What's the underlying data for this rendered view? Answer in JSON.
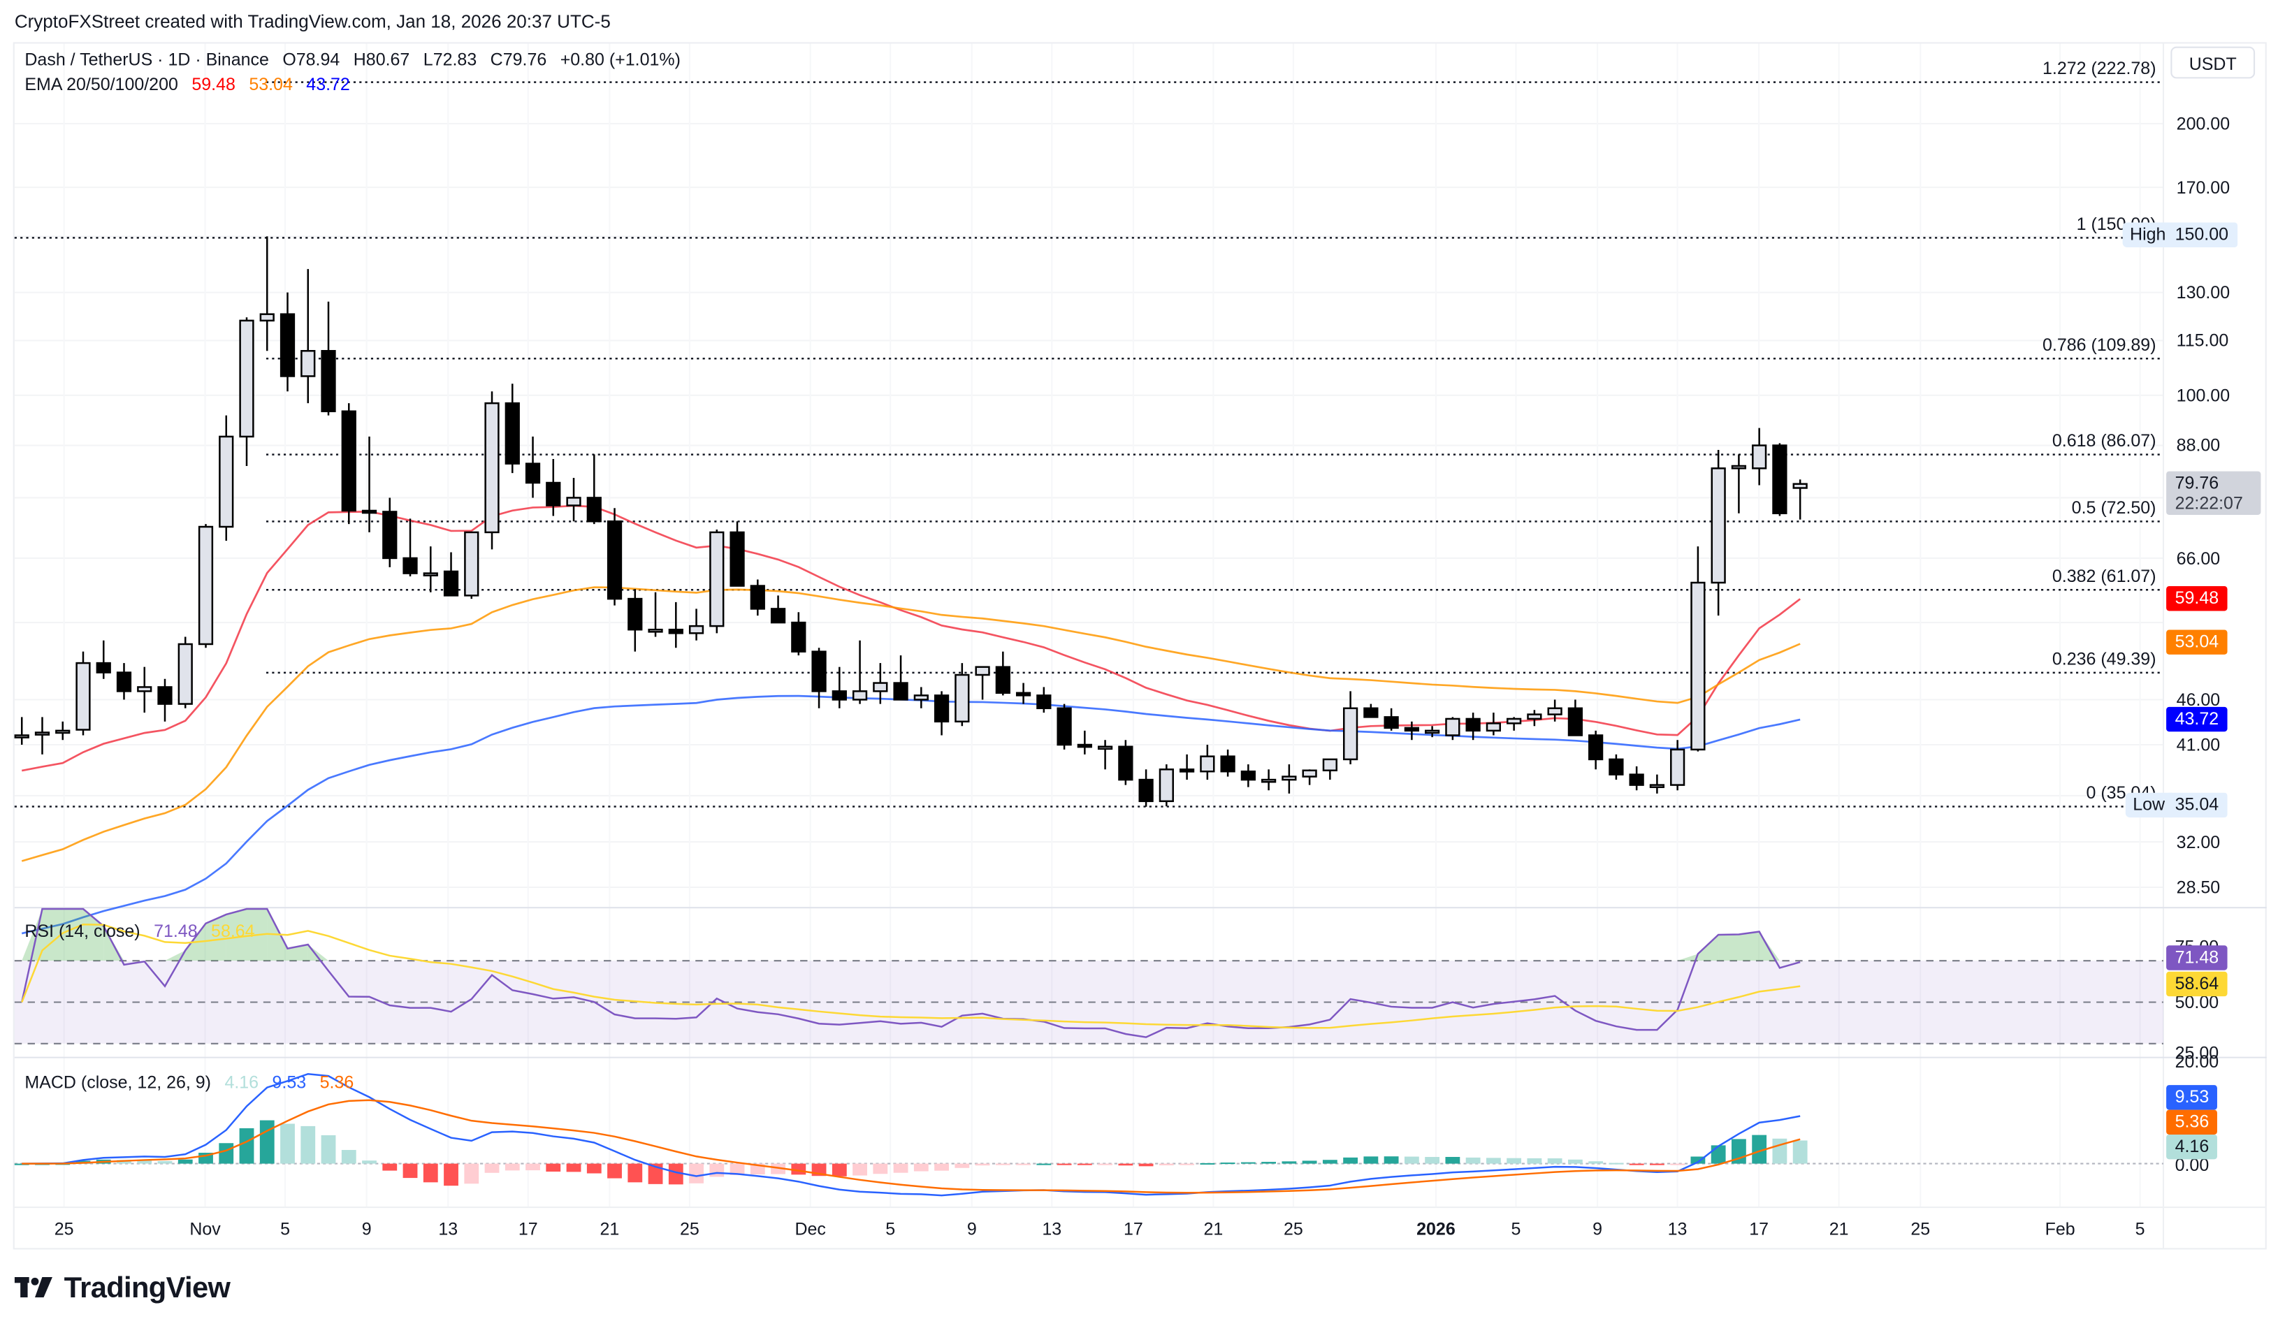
{
  "header": {
    "credit": "CryptoFXStreet created with TradingView.com, Jan 18, 2026 20:37 UTC-5",
    "symbol": "Dash / TetherUS · 1D · Binance",
    "ohlc": {
      "open": "O78.94",
      "high": "H80.67",
      "low": "L72.83",
      "close": "C79.76",
      "change": "+0.80 (+1.01%)"
    },
    "ema_label": "EMA 20/50/100/200",
    "ema_values": {
      "ema20": "59.48",
      "ema50": "53.04",
      "ema100": "43.72"
    },
    "currency_button": "USDT"
  },
  "price_axis": {
    "ticks": [
      "200.00",
      "170.00",
      "130.00",
      "115.00",
      "100.00",
      "88.00",
      "66.00",
      "46.00",
      "41.00",
      "32.00",
      "28.50"
    ],
    "last_price": "79.76",
    "countdown": "22:22:07",
    "ema20_tag": "59.48",
    "ema50_tag": "53.04",
    "ema100_tag": "43.72",
    "high_label": "High",
    "high_value": "150.00",
    "low_label": "Low",
    "low_value": "35.04"
  },
  "fib_levels": [
    {
      "label": "1.272 (222.78)",
      "price": 222.78
    },
    {
      "label": "1 (150.00)",
      "price": 150.0
    },
    {
      "label": "0.786 (109.89)",
      "price": 109.89
    },
    {
      "label": "0.618 (86.07)",
      "price": 86.07
    },
    {
      "label": "0.5 (72.50)",
      "price": 72.5
    },
    {
      "label": "0.382 (61.07)",
      "price": 61.07
    },
    {
      "label": "0.236 (49.39)",
      "price": 49.39
    },
    {
      "label": "0 (35.04)",
      "price": 35.04
    }
  ],
  "rsi": {
    "label": "RSI (14, close)",
    "value": "71.48",
    "ma_value": "58.64",
    "ticks": [
      "75.00",
      "50.00",
      "25.00"
    ],
    "value_tag": "71.48",
    "ma_tag": "58.64"
  },
  "macd": {
    "label": "MACD (close, 12, 26, 9)",
    "histogram": "4.16",
    "macd": "9.53",
    "signal": "5.36",
    "ticks": [
      "20.00",
      "0.00"
    ],
    "macd_tag": "9.53",
    "signal_tag": "5.36",
    "hist_tag": "4.16"
  },
  "time_axis": {
    "labels": [
      {
        "text": "25",
        "x": 44
      },
      {
        "text": "Nov",
        "x": 141
      },
      {
        "text": "5",
        "x": 196
      },
      {
        "text": "9",
        "x": 252
      },
      {
        "text": "13",
        "x": 308
      },
      {
        "text": "17",
        "x": 363
      },
      {
        "text": "21",
        "x": 419
      },
      {
        "text": "25",
        "x": 474
      },
      {
        "text": "Dec",
        "x": 557
      },
      {
        "text": "5",
        "x": 612
      },
      {
        "text": "9",
        "x": 668
      },
      {
        "text": "13",
        "x": 723
      },
      {
        "text": "17",
        "x": 779
      },
      {
        "text": "21",
        "x": 834
      },
      {
        "text": "25",
        "x": 889
      },
      {
        "text": "2026",
        "x": 987,
        "bold": true
      },
      {
        "text": "5",
        "x": 1042
      },
      {
        "text": "9",
        "x": 1098
      },
      {
        "text": "13",
        "x": 1153
      },
      {
        "text": "17",
        "x": 1209
      },
      {
        "text": "21",
        "x": 1264
      },
      {
        "text": "25",
        "x": 1320
      },
      {
        "text": "Feb",
        "x": 1416
      },
      {
        "text": "5",
        "x": 1471
      }
    ]
  },
  "branding": {
    "logo_text": "TradingView"
  },
  "colors": {
    "ema20": "#f23645",
    "ema50": "#ff9800",
    "ema100": "#2962ff",
    "ema100_tag": "#0000ff",
    "rsi_line": "#7e57c2",
    "rsi_ma": "#fdd835",
    "macd_line": "#2962ff",
    "signal_line": "#ff6d00",
    "hist_up_strong": "#26a69a",
    "hist_up_weak": "#b2dfdb",
    "hist_down_strong": "#ff5252",
    "hist_down_weak": "#ffcdd2",
    "candle_up": "#e0e3eb",
    "candle_down": "#000000"
  },
  "chart_data": {
    "type": "candlestick",
    "title": "Dash / TetherUS · 1D · Binance",
    "ylabel": "USDT",
    "y_scale": "log",
    "ylim": [
      27,
      240
    ],
    "x_range": [
      "2025-10-23",
      "2026-01-18"
    ],
    "candles": [
      {
        "d": "Oct 23",
        "o": 42.0,
        "h": 44.0,
        "l": 41.0,
        "c": 42.0
      },
      {
        "d": "Oct 24",
        "o": 42.3,
        "h": 44.0,
        "l": 40.0,
        "c": 42.3
      },
      {
        "d": "Oct 25",
        "o": 42.5,
        "h": 43.5,
        "l": 41.5,
        "c": 42.5
      },
      {
        "d": "Oct 26",
        "o": 42.6,
        "h": 52.0,
        "l": 42.0,
        "c": 50.5
      },
      {
        "d": "Oct 27",
        "o": 50.5,
        "h": 53.5,
        "l": 48.5,
        "c": 49.3
      },
      {
        "d": "Oct 28",
        "o": 49.3,
        "h": 50.5,
        "l": 46.0,
        "c": 47.0
      },
      {
        "d": "Oct 29",
        "o": 47.0,
        "h": 50.0,
        "l": 44.5,
        "c": 47.5
      },
      {
        "d": "Oct 30",
        "o": 47.5,
        "h": 48.5,
        "l": 43.5,
        "c": 45.5
      },
      {
        "d": "Oct 31",
        "o": 45.5,
        "h": 54.0,
        "l": 45.0,
        "c": 53.0
      },
      {
        "d": "Nov 1",
        "o": 53.0,
        "h": 72.0,
        "l": 52.5,
        "c": 71.5
      },
      {
        "d": "Nov 2",
        "o": 71.5,
        "h": 95.0,
        "l": 69.0,
        "c": 90.0
      },
      {
        "d": "Nov 3",
        "o": 90.0,
        "h": 122.0,
        "l": 83.5,
        "c": 121.0
      },
      {
        "d": "Nov 4",
        "o": 121.0,
        "h": 150.0,
        "l": 112.0,
        "c": 123.0
      },
      {
        "d": "Nov 5",
        "o": 123.0,
        "h": 130.0,
        "l": 101.0,
        "c": 105.0
      },
      {
        "d": "Nov 6",
        "o": 105.0,
        "h": 138.0,
        "l": 98.0,
        "c": 112.0
      },
      {
        "d": "Nov 7",
        "o": 112.0,
        "h": 127.0,
        "l": 95.0,
        "c": 96.0
      },
      {
        "d": "Nov 8",
        "o": 96.0,
        "h": 98.0,
        "l": 72.0,
        "c": 74.5
      },
      {
        "d": "Nov 9",
        "o": 74.5,
        "h": 90.0,
        "l": 70.5,
        "c": 74.3
      },
      {
        "d": "Nov 10",
        "o": 74.3,
        "h": 77.0,
        "l": 64.5,
        "c": 66.0
      },
      {
        "d": "Nov 11",
        "o": 66.0,
        "h": 73.0,
        "l": 63.0,
        "c": 63.5
      },
      {
        "d": "Nov 12",
        "o": 63.5,
        "h": 68.0,
        "l": 60.5,
        "c": 63.5
      },
      {
        "d": "Nov 13",
        "o": 63.8,
        "h": 67.0,
        "l": 60.0,
        "c": 60.0
      },
      {
        "d": "Nov 14",
        "o": 60.0,
        "h": 68.0,
        "l": 59.5,
        "c": 70.5
      },
      {
        "d": "Nov 15",
        "o": 70.5,
        "h": 101.0,
        "l": 67.5,
        "c": 98.0
      },
      {
        "d": "Nov 16",
        "o": 98.0,
        "h": 103.0,
        "l": 82.0,
        "c": 84.0
      },
      {
        "d": "Nov 17",
        "o": 84.0,
        "h": 90.0,
        "l": 77.0,
        "c": 80.0
      },
      {
        "d": "Nov 18",
        "o": 80.0,
        "h": 85.0,
        "l": 73.5,
        "c": 75.5
      },
      {
        "d": "Nov 19",
        "o": 75.5,
        "h": 81.0,
        "l": 72.5,
        "c": 77.0
      },
      {
        "d": "Nov 20",
        "o": 77.0,
        "h": 86.0,
        "l": 72.0,
        "c": 72.5
      },
      {
        "d": "Nov 21",
        "o": 72.5,
        "h": 75.0,
        "l": 58.5,
        "c": 59.5
      },
      {
        "d": "Nov 22",
        "o": 59.5,
        "h": 61.0,
        "l": 52.0,
        "c": 55.0
      },
      {
        "d": "Nov 23",
        "o": 55.0,
        "h": 60.5,
        "l": 54.0,
        "c": 55.0
      },
      {
        "d": "Nov 24",
        "o": 55.0,
        "h": 59.0,
        "l": 52.5,
        "c": 54.5
      },
      {
        "d": "Nov 25",
        "o": 54.5,
        "h": 58.0,
        "l": 53.5,
        "c": 55.5
      },
      {
        "d": "Nov 26",
        "o": 55.5,
        "h": 71.0,
        "l": 54.5,
        "c": 70.5
      },
      {
        "d": "Nov 27",
        "o": 70.5,
        "h": 72.5,
        "l": 61.5,
        "c": 61.5
      },
      {
        "d": "Nov 28",
        "o": 61.5,
        "h": 62.5,
        "l": 57.0,
        "c": 58.0
      },
      {
        "d": "Nov 29",
        "o": 58.0,
        "h": 60.0,
        "l": 56.0,
        "c": 56.0
      },
      {
        "d": "Nov 30",
        "o": 56.0,
        "h": 57.5,
        "l": 51.5,
        "c": 52.0
      },
      {
        "d": "Dec 1",
        "o": 52.0,
        "h": 52.5,
        "l": 45.0,
        "c": 47.0
      },
      {
        "d": "Dec 2",
        "o": 47.0,
        "h": 50.0,
        "l": 45.0,
        "c": 46.0
      },
      {
        "d": "Dec 3",
        "o": 46.0,
        "h": 53.5,
        "l": 45.5,
        "c": 47.0
      },
      {
        "d": "Dec 4",
        "o": 47.0,
        "h": 50.5,
        "l": 45.5,
        "c": 48.0
      },
      {
        "d": "Dec 5",
        "o": 48.0,
        "h": 51.5,
        "l": 46.0,
        "c": 46.0
      },
      {
        "d": "Dec 6",
        "o": 46.0,
        "h": 47.5,
        "l": 45.0,
        "c": 46.5
      },
      {
        "d": "Dec 7",
        "o": 46.5,
        "h": 47.0,
        "l": 42.0,
        "c": 43.5
      },
      {
        "d": "Dec 8",
        "o": 43.5,
        "h": 50.5,
        "l": 43.0,
        "c": 49.0
      },
      {
        "d": "Dec 9",
        "o": 49.0,
        "h": 50.0,
        "l": 46.0,
        "c": 50.0
      },
      {
        "d": "Dec 10",
        "o": 50.0,
        "h": 52.0,
        "l": 46.5,
        "c": 46.8
      },
      {
        "d": "Dec 11",
        "o": 46.8,
        "h": 48.0,
        "l": 45.5,
        "c": 46.5
      },
      {
        "d": "Dec 12",
        "o": 46.5,
        "h": 47.5,
        "l": 44.5,
        "c": 45.0
      },
      {
        "d": "Dec 13",
        "o": 45.0,
        "h": 45.5,
        "l": 40.5,
        "c": 41.0
      },
      {
        "d": "Dec 14",
        "o": 41.0,
        "h": 42.5,
        "l": 40.0,
        "c": 40.8
      },
      {
        "d": "Dec 15",
        "o": 40.8,
        "h": 41.5,
        "l": 38.5,
        "c": 40.8
      },
      {
        "d": "Dec 16",
        "o": 40.8,
        "h": 41.5,
        "l": 37.0,
        "c": 37.5
      },
      {
        "d": "Dec 17",
        "o": 37.5,
        "h": 38.5,
        "l": 35.0,
        "c": 35.5
      },
      {
        "d": "Dec 18",
        "o": 35.5,
        "h": 39.0,
        "l": 35.04,
        "c": 38.5
      },
      {
        "d": "Dec 19",
        "o": 38.5,
        "h": 40.0,
        "l": 37.5,
        "c": 38.3
      },
      {
        "d": "Dec 20",
        "o": 38.3,
        "h": 41.0,
        "l": 37.5,
        "c": 39.8
      },
      {
        "d": "Dec 21",
        "o": 39.8,
        "h": 40.5,
        "l": 37.8,
        "c": 38.3
      },
      {
        "d": "Dec 22",
        "o": 38.3,
        "h": 39.0,
        "l": 36.8,
        "c": 37.5
      },
      {
        "d": "Dec 23",
        "o": 37.5,
        "h": 38.5,
        "l": 36.5,
        "c": 37.5
      },
      {
        "d": "Dec 24",
        "o": 37.5,
        "h": 39.0,
        "l": 36.2,
        "c": 37.8
      },
      {
        "d": "Dec 25",
        "o": 37.8,
        "h": 38.5,
        "l": 37.0,
        "c": 38.4
      },
      {
        "d": "Dec 26",
        "o": 38.4,
        "h": 39.5,
        "l": 37.5,
        "c": 39.5
      },
      {
        "d": "Dec 27",
        "o": 39.5,
        "h": 47.0,
        "l": 39.0,
        "c": 45.0
      },
      {
        "d": "Dec 28",
        "o": 45.0,
        "h": 45.5,
        "l": 44.0,
        "c": 44.0
      },
      {
        "d": "Dec 29",
        "o": 44.0,
        "h": 45.0,
        "l": 42.5,
        "c": 42.8
      },
      {
        "d": "Dec 30",
        "o": 42.8,
        "h": 43.5,
        "l": 41.5,
        "c": 42.5
      },
      {
        "d": "Dec 31",
        "o": 42.5,
        "h": 43.0,
        "l": 41.8,
        "c": 42.5
      },
      {
        "d": "Jan 1",
        "o": 42.0,
        "h": 44.0,
        "l": 41.5,
        "c": 43.8
      },
      {
        "d": "Jan 2",
        "o": 43.8,
        "h": 44.5,
        "l": 41.5,
        "c": 42.5
      },
      {
        "d": "Jan 3",
        "o": 42.5,
        "h": 44.5,
        "l": 42.0,
        "c": 43.3
      },
      {
        "d": "Jan 4",
        "o": 43.3,
        "h": 44.0,
        "l": 42.5,
        "c": 43.8
      },
      {
        "d": "Jan 5",
        "o": 43.8,
        "h": 44.8,
        "l": 43.0,
        "c": 44.3
      },
      {
        "d": "Jan 6",
        "o": 44.3,
        "h": 46.0,
        "l": 43.5,
        "c": 45.0
      },
      {
        "d": "Jan 7",
        "o": 45.0,
        "h": 46.0,
        "l": 42.0,
        "c": 42.0
      },
      {
        "d": "Jan 8",
        "o": 42.0,
        "h": 42.5,
        "l": 38.5,
        "c": 39.5
      },
      {
        "d": "Jan 9",
        "o": 39.5,
        "h": 40.0,
        "l": 37.5,
        "c": 38.0
      },
      {
        "d": "Jan 10",
        "o": 38.0,
        "h": 38.8,
        "l": 36.5,
        "c": 37.0
      },
      {
        "d": "Jan 11",
        "o": 37.0,
        "h": 38.0,
        "l": 36.2,
        "c": 37.0
      },
      {
        "d": "Jan 12",
        "o": 37.0,
        "h": 41.5,
        "l": 36.5,
        "c": 40.5
      },
      {
        "d": "Jan 13",
        "o": 40.5,
        "h": 68.0,
        "l": 40.3,
        "c": 62.0
      },
      {
        "d": "Jan 14",
        "o": 62.0,
        "h": 87.0,
        "l": 57.0,
        "c": 83.0
      },
      {
        "d": "Jan 15",
        "o": 83.0,
        "h": 86.0,
        "l": 74.0,
        "c": 83.5
      },
      {
        "d": "Jan 16",
        "o": 83.0,
        "h": 92.0,
        "l": 79.5,
        "c": 88.0
      },
      {
        "d": "Jan 17",
        "o": 88.0,
        "h": 88.5,
        "l": 73.5,
        "c": 74.0
      },
      {
        "d": "Jan 18",
        "o": 78.94,
        "h": 80.67,
        "l": 72.83,
        "c": 79.76
      }
    ],
    "series": [
      {
        "name": "EMA 20",
        "last": 59.48
      },
      {
        "name": "EMA 50",
        "last": 53.04
      },
      {
        "name": "EMA 100",
        "last": 43.72
      }
    ],
    "fib_retracement": {
      "0": 35.04,
      "0.236": 49.39,
      "0.382": 61.07,
      "0.5": 72.5,
      "0.618": 86.07,
      "0.786": 109.89,
      "1": 150.0,
      "1.272": 222.78
    },
    "indicators": {
      "rsi": {
        "period": 14,
        "value": 71.48,
        "ma": 58.64,
        "bands": [
          30,
          50,
          70
        ],
        "ticks": [
          25,
          50,
          75
        ]
      },
      "macd": {
        "fast": 12,
        "slow": 26,
        "signal": 9,
        "macd": 9.53,
        "signal_value": 5.36,
        "histogram": 4.16
      }
    }
  }
}
